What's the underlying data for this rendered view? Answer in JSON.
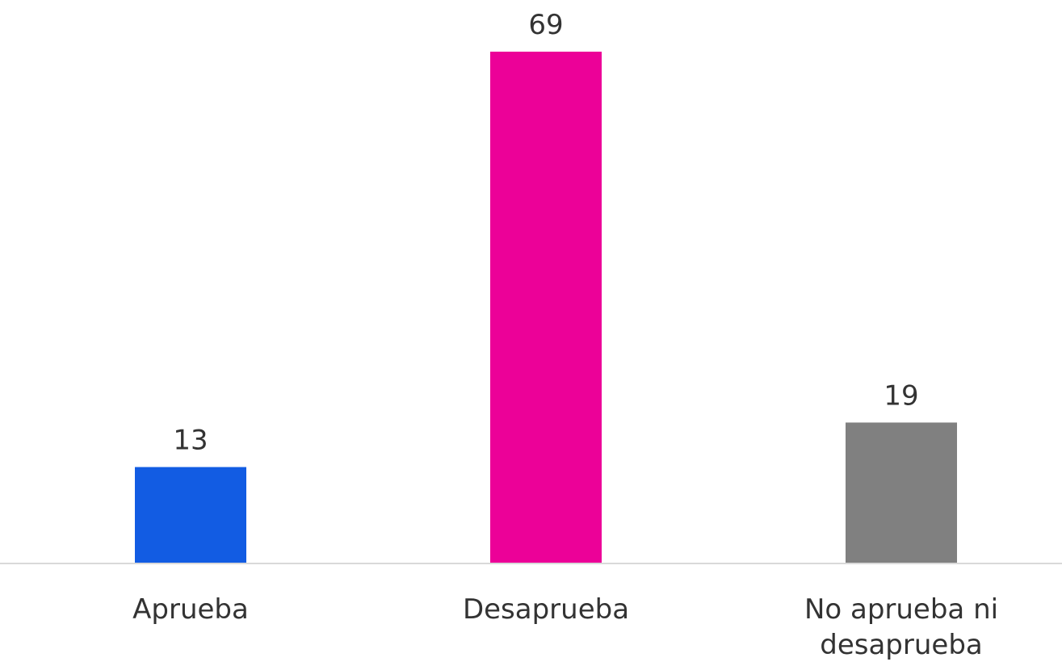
{
  "chart_data": {
    "type": "bar",
    "categories": [
      [
        "Aprueba"
      ],
      [
        "Desaprueba"
      ],
      [
        "No aprueba ni",
        "desaprueba"
      ]
    ],
    "values": [
      13,
      69,
      19
    ],
    "data_labels": [
      "13",
      "69",
      "19"
    ],
    "colors": [
      "#125ce3",
      "#ec0198",
      "#808080"
    ],
    "ylim": [
      0,
      69
    ],
    "grid": false,
    "legend": "none",
    "axis_color": "#d9d9d9"
  }
}
